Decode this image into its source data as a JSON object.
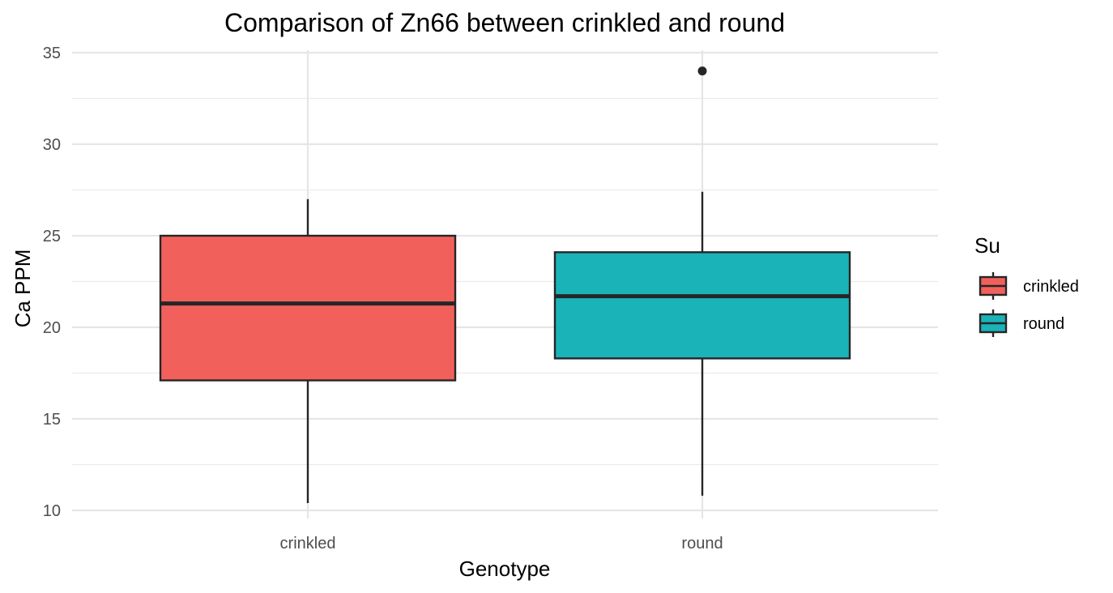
{
  "chart_data": {
    "type": "box",
    "title": "Comparison of Zn66 between crinkled and round",
    "xlabel": "Genotype",
    "ylabel": "Ca PPM",
    "ylim": [
      9.6,
      35.1
    ],
    "yticks": [
      10,
      15,
      20,
      25,
      30,
      35
    ],
    "grid": true,
    "legend": {
      "title": "Su",
      "placement": "right",
      "entries": [
        "crinkled",
        "round"
      ]
    },
    "categories": [
      "crinkled",
      "round"
    ],
    "series": [
      {
        "name": "crinkled",
        "color": "#f2605c",
        "min": 10.4,
        "q1": 17.1,
        "median": 21.3,
        "q3": 25.0,
        "max": 27.0,
        "outliers": []
      },
      {
        "name": "round",
        "color": "#1ab3b8",
        "min": 10.8,
        "q1": 18.3,
        "median": 21.7,
        "q3": 24.1,
        "max": 27.4,
        "outliers": [
          34.0
        ]
      }
    ]
  }
}
